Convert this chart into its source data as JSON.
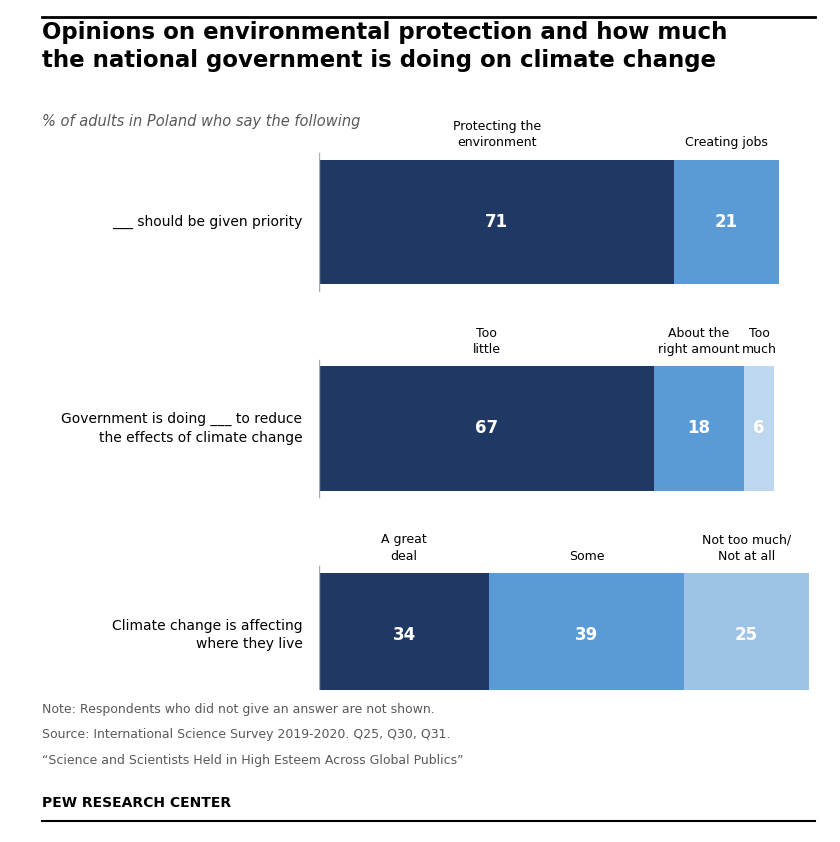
{
  "title": "Opinions on environmental protection and how much\nthe national government is doing on climate change",
  "subtitle": "% of adults in Poland who say the following",
  "rows": [
    {
      "y_label": "___ should be given priority",
      "segments": [
        71,
        21
      ],
      "colors": [
        "#1f3864",
        "#5b9bd5"
      ],
      "col_labels": [
        "Protecting the\nenvironment",
        "Creating jobs"
      ]
    },
    {
      "y_label": "Government is doing ___ to reduce\nthe effects of climate change",
      "segments": [
        67,
        18,
        6
      ],
      "colors": [
        "#1f3864",
        "#5b9bd5",
        "#bdd7ee"
      ],
      "col_labels": [
        "Too\nlittle",
        "About the\nright amount",
        "Too\nmuch"
      ]
    },
    {
      "y_label": "Climate change is affecting\nwhere they live",
      "segments": [
        34,
        39,
        25
      ],
      "colors": [
        "#1f3864",
        "#5b9bd5",
        "#9dc3e6"
      ],
      "col_labels": [
        "A great\ndeal",
        "Some",
        "Not too much/\nNot at all"
      ]
    }
  ],
  "note_lines": [
    "Note: Respondents who did not give an answer are not shown.",
    "Source: International Science Survey 2019-2020. Q25, Q30, Q31.",
    "“Science and Scientists Held in High Esteem Across Global Publics”"
  ],
  "source_label": "PEW RESEARCH CENTER",
  "title_color": "#000000",
  "subtitle_color": "#595959",
  "note_color": "#595959",
  "bar_label_color": "#ffffff",
  "separator_color": "#aaaaaa"
}
